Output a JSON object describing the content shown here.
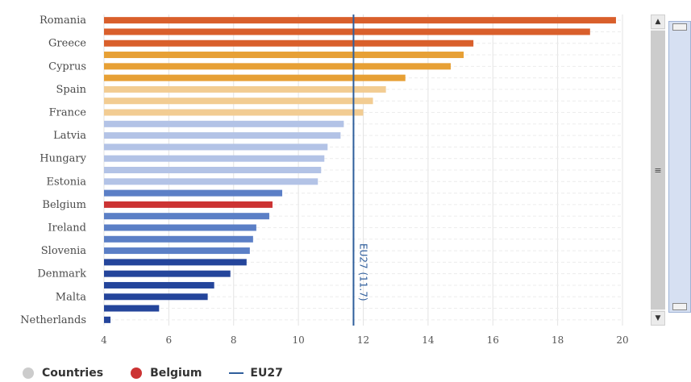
{
  "chart_data": {
    "type": "bar",
    "orientation": "horizontal",
    "categories": [
      "Romania",
      "",
      "Greece",
      "",
      "Cyprus",
      "",
      "Spain",
      "",
      "France",
      "",
      "Latvia",
      "",
      "Hungary",
      "",
      "Estonia",
      "",
      "Belgium",
      "",
      "Ireland",
      "",
      "Slovenia",
      "",
      "Denmark",
      "",
      "Malta",
      "",
      "Netherlands"
    ],
    "values": [
      19.8,
      19.0,
      15.4,
      15.1,
      14.7,
      13.3,
      12.7,
      12.3,
      12.0,
      11.4,
      11.3,
      10.9,
      10.8,
      10.7,
      10.6,
      9.5,
      9.2,
      9.1,
      8.7,
      8.6,
      8.5,
      8.4,
      7.9,
      7.4,
      7.2,
      5.7,
      4.2
    ],
    "colors": [
      "#d95f2b",
      "#d95f2b",
      "#d95f2b",
      "#e7a035",
      "#e7a035",
      "#e7a035",
      "#f2cc92",
      "#f2cc92",
      "#f2cc92",
      "#b3c3e6",
      "#b3c3e6",
      "#b3c3e6",
      "#b3c3e6",
      "#b3c3e6",
      "#b3c3e6",
      "#5b7fc6",
      "#cc3333",
      "#5b7fc6",
      "#5b7fc6",
      "#5b7fc6",
      "#5b7fc6",
      "#24459b",
      "#24459b",
      "#24459b",
      "#24459b",
      "#24459b",
      "#24459b"
    ],
    "xlim": [
      4,
      20
    ],
    "x_ticks": [
      4,
      6,
      8,
      10,
      12,
      14,
      16,
      18,
      20
    ],
    "grid": true,
    "reference_line": {
      "value": 11.7,
      "label": "EU27 (11.7)",
      "color": "#2f5e9c"
    },
    "legend": {
      "placement": "bottom-left",
      "items": [
        {
          "label": "Countries",
          "color": "#cccccc",
          "shape": "circle"
        },
        {
          "label": "Belgium",
          "color": "#cc3333",
          "shape": "circle"
        },
        {
          "label": "EU27",
          "color": "#2f5e9c",
          "shape": "line"
        }
      ]
    }
  },
  "scrollbar": {
    "up_icon": "▲",
    "down_icon": "▼",
    "thumb_icon": "≡"
  }
}
